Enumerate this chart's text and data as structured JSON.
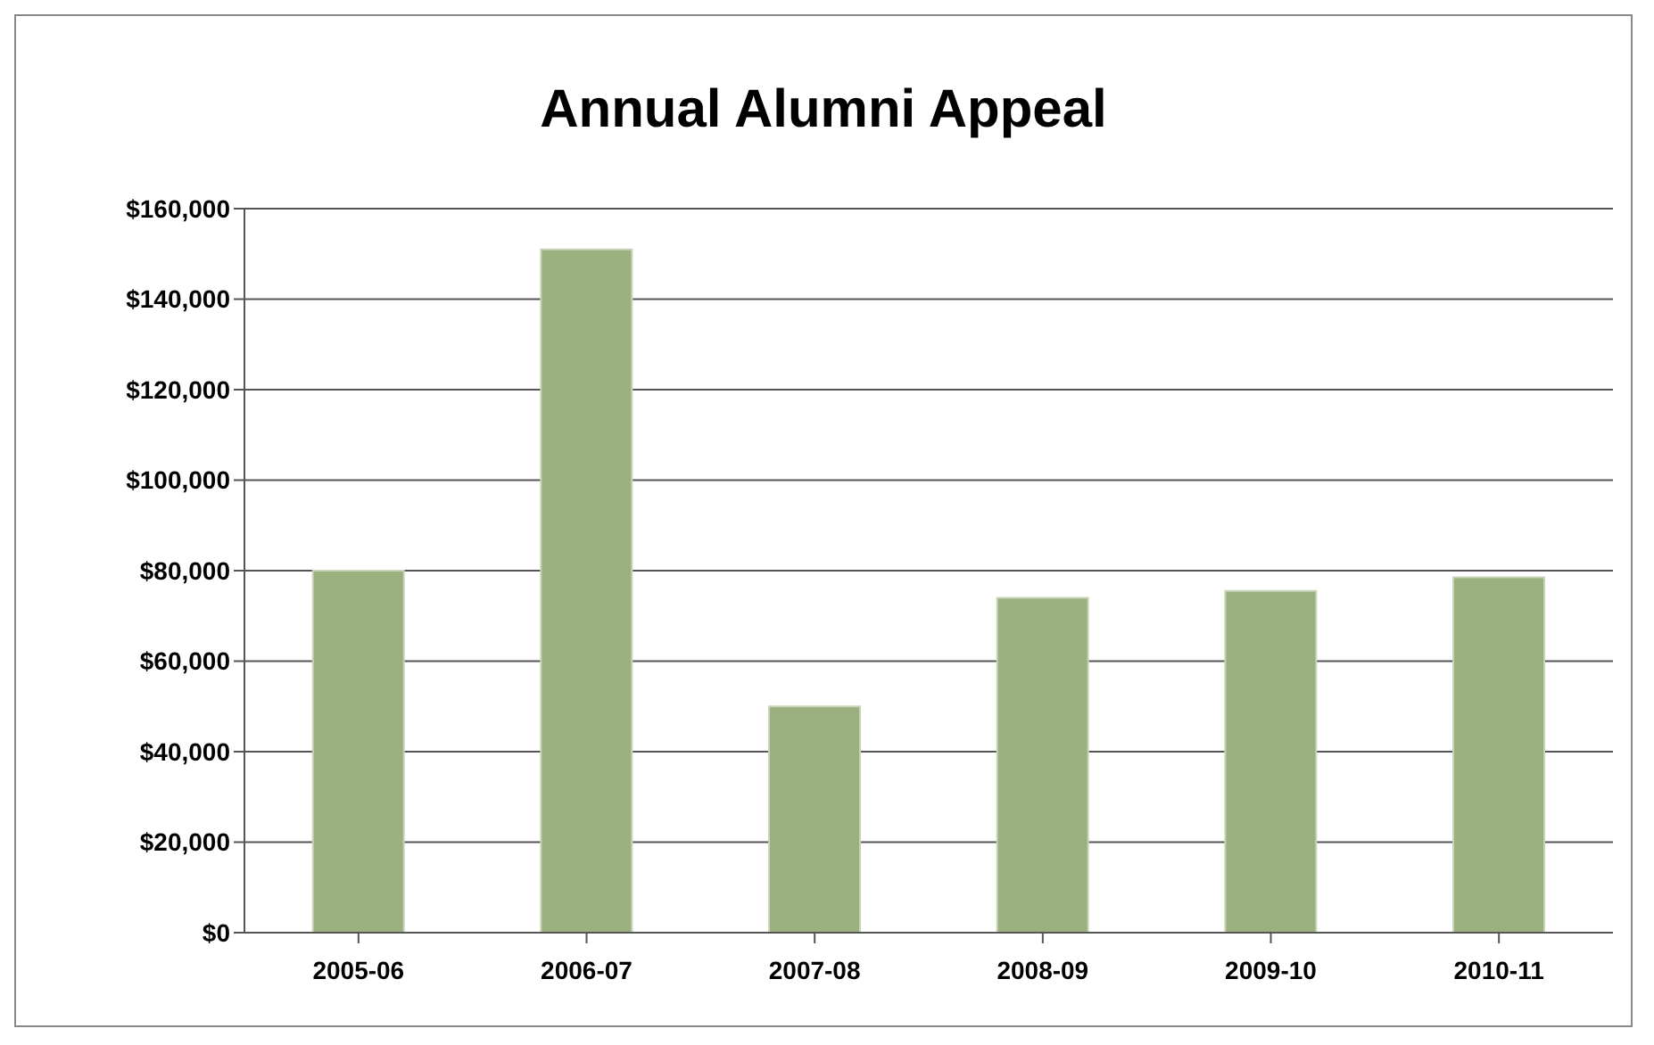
{
  "chart_data": {
    "type": "bar",
    "title": "Annual Alumni Appeal",
    "categories": [
      "2005-06",
      "2006-07",
      "2007-08",
      "2008-09",
      "2009-10",
      "2010-11"
    ],
    "values": [
      80000,
      151000,
      50000,
      74000,
      75500,
      78500
    ],
    "color": "#9bb07f",
    "ylim": [
      0,
      160000
    ],
    "yticks": [
      {
        "value": 0,
        "label": "$0"
      },
      {
        "value": 20000,
        "label": "$20,000"
      },
      {
        "value": 40000,
        "label": "$40,000"
      },
      {
        "value": 60000,
        "label": "$60,000"
      },
      {
        "value": 80000,
        "label": "$80,000"
      },
      {
        "value": 100000,
        "label": "$100,000"
      },
      {
        "value": 120000,
        "label": "$120,000"
      },
      {
        "value": 140000,
        "label": "$140,000"
      },
      {
        "value": 160000,
        "label": "$160,000"
      }
    ],
    "grid": "y",
    "legend": false
  }
}
